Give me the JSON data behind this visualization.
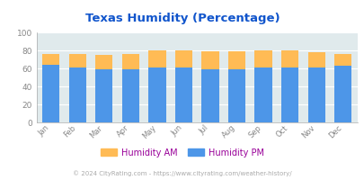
{
  "title": "Texas Humidity (Percentage)",
  "months": [
    "Jan",
    "Feb",
    "Mar",
    "Apr",
    "May",
    "Jun",
    "Jul",
    "Aug",
    "Sep",
    "Oct",
    "Nov",
    "Dec"
  ],
  "humidity_pm": [
    64,
    61,
    59,
    59,
    61,
    61,
    59,
    59,
    61,
    61,
    61,
    63
  ],
  "humidity_am_top": [
    76,
    76,
    75,
    76,
    80,
    80,
    79,
    79,
    80,
    80,
    78,
    76
  ],
  "ylim": [
    0,
    100
  ],
  "yticks": [
    0,
    20,
    40,
    60,
    80,
    100
  ],
  "color_am": "#FFBB55",
  "color_pm": "#4D96E8",
  "bg_color": "#E0EAEC",
  "fig_bg_color": "#ffffff",
  "title_color": "#1155CC",
  "legend_am_label": "Humidity AM",
  "legend_pm_label": "Humidity PM",
  "legend_label_color": "#990099",
  "footer_text": "© 2024 CityRating.com - https://www.cityrating.com/weather-history/",
  "footer_color": "#aaaaaa",
  "tick_color": "#888888",
  "grid_color": "#ffffff",
  "spine_color": "#aaaaaa"
}
